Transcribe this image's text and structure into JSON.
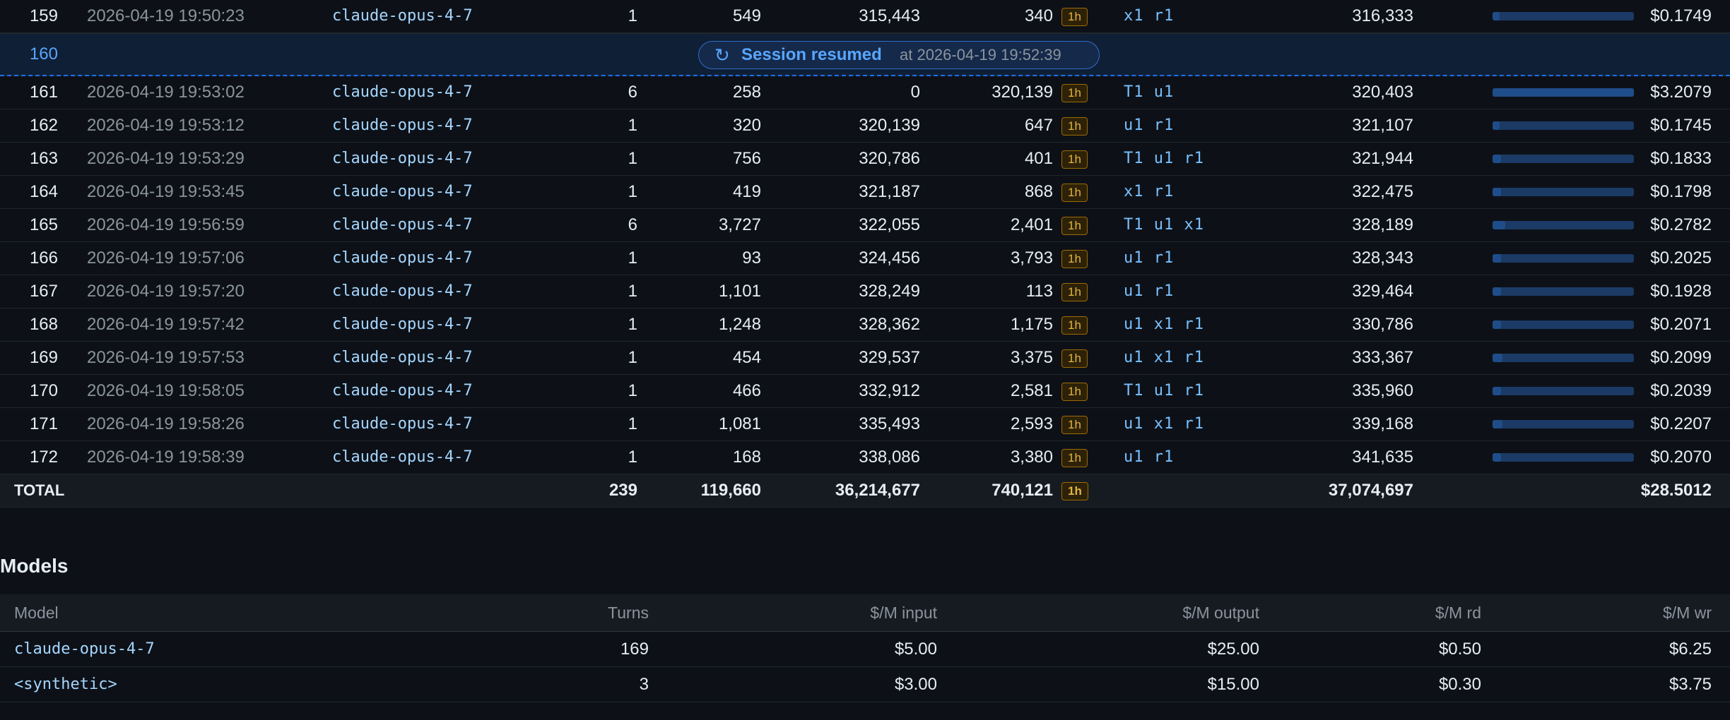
{
  "turns": {
    "rows_before": [
      {
        "idx": "159",
        "ts": "2026-04-19 19:50:23",
        "model": "claude-opus-4-7",
        "req": "1",
        "out": "549",
        "cache_read": "315,443",
        "cache_write": "340",
        "ttl": "1h",
        "tools": "x1 r1",
        "total": "316,333",
        "cost": "$0.1749",
        "bar_fraction": 0.05
      }
    ],
    "resume": {
      "idx": "160",
      "label": "Session resumed",
      "at": "at 2026-04-19 19:52:39",
      "icon": "restart-icon"
    },
    "rows": [
      {
        "idx": "161",
        "ts": "2026-04-19 19:53:02",
        "model": "claude-opus-4-7",
        "req": "6",
        "out": "258",
        "cache_read": "0",
        "cache_write": "320,139",
        "ttl": "1h",
        "tools": "T1 u1",
        "total": "320,403",
        "cost": "$3.2079",
        "bar_fraction": 1.0
      },
      {
        "idx": "162",
        "ts": "2026-04-19 19:53:12",
        "model": "claude-opus-4-7",
        "req": "1",
        "out": "320",
        "cache_read": "320,139",
        "cache_write": "647",
        "ttl": "1h",
        "tools": "u1 r1",
        "total": "321,107",
        "cost": "$0.1745",
        "bar_fraction": 0.05
      },
      {
        "idx": "163",
        "ts": "2026-04-19 19:53:29",
        "model": "claude-opus-4-7",
        "req": "1",
        "out": "756",
        "cache_read": "320,786",
        "cache_write": "401",
        "ttl": "1h",
        "tools": "T1 u1 r1",
        "total": "321,944",
        "cost": "$0.1833",
        "bar_fraction": 0.06
      },
      {
        "idx": "164",
        "ts": "2026-04-19 19:53:45",
        "model": "claude-opus-4-7",
        "req": "1",
        "out": "419",
        "cache_read": "321,187",
        "cache_write": "868",
        "ttl": "1h",
        "tools": "x1 r1",
        "total": "322,475",
        "cost": "$0.1798",
        "bar_fraction": 0.06
      },
      {
        "idx": "165",
        "ts": "2026-04-19 19:56:59",
        "model": "claude-opus-4-7",
        "req": "6",
        "out": "3,727",
        "cache_read": "322,055",
        "cache_write": "2,401",
        "ttl": "1h",
        "tools": "T1 u1 x1",
        "total": "328,189",
        "cost": "$0.2782",
        "bar_fraction": 0.09
      },
      {
        "idx": "166",
        "ts": "2026-04-19 19:57:06",
        "model": "claude-opus-4-7",
        "req": "1",
        "out": "93",
        "cache_read": "324,456",
        "cache_write": "3,793",
        "ttl": "1h",
        "tools": "u1 r1",
        "total": "328,343",
        "cost": "$0.2025",
        "bar_fraction": 0.06
      },
      {
        "idx": "167",
        "ts": "2026-04-19 19:57:20",
        "model": "claude-opus-4-7",
        "req": "1",
        "out": "1,101",
        "cache_read": "328,249",
        "cache_write": "113",
        "ttl": "1h",
        "tools": "u1 r1",
        "total": "329,464",
        "cost": "$0.1928",
        "bar_fraction": 0.06
      },
      {
        "idx": "168",
        "ts": "2026-04-19 19:57:42",
        "model": "claude-opus-4-7",
        "req": "1",
        "out": "1,248",
        "cache_read": "328,362",
        "cache_write": "1,175",
        "ttl": "1h",
        "tools": "u1 x1 r1",
        "total": "330,786",
        "cost": "$0.2071",
        "bar_fraction": 0.06
      },
      {
        "idx": "169",
        "ts": "2026-04-19 19:57:53",
        "model": "claude-opus-4-7",
        "req": "1",
        "out": "454",
        "cache_read": "329,537",
        "cache_write": "3,375",
        "ttl": "1h",
        "tools": "u1 x1 r1",
        "total": "333,367",
        "cost": "$0.2099",
        "bar_fraction": 0.07
      },
      {
        "idx": "170",
        "ts": "2026-04-19 19:58:05",
        "model": "claude-opus-4-7",
        "req": "1",
        "out": "466",
        "cache_read": "332,912",
        "cache_write": "2,581",
        "ttl": "1h",
        "tools": "T1 u1 r1",
        "total": "335,960",
        "cost": "$0.2039",
        "bar_fraction": 0.06
      },
      {
        "idx": "171",
        "ts": "2026-04-19 19:58:26",
        "model": "claude-opus-4-7",
        "req": "1",
        "out": "1,081",
        "cache_read": "335,493",
        "cache_write": "2,593",
        "ttl": "1h",
        "tools": "u1 x1 r1",
        "total": "339,168",
        "cost": "$0.2207",
        "bar_fraction": 0.07
      },
      {
        "idx": "172",
        "ts": "2026-04-19 19:58:39",
        "model": "claude-opus-4-7",
        "req": "1",
        "out": "168",
        "cache_read": "338,086",
        "cache_write": "3,380",
        "ttl": "1h",
        "tools": "u1 r1",
        "total": "341,635",
        "cost": "$0.2070",
        "bar_fraction": 0.06
      }
    ],
    "total": {
      "label": "TOTAL",
      "req": "239",
      "out": "119,660",
      "cache_read": "36,214,677",
      "cache_write": "740,121",
      "ttl": "1h",
      "total": "37,074,697",
      "cost": "$28.5012"
    }
  },
  "models": {
    "heading": "Models",
    "headers": {
      "model": "Model",
      "turns": "Turns",
      "input": "$/M input",
      "output": "$/M output",
      "rd": "$/M rd",
      "wr": "$/M wr"
    },
    "rows": [
      {
        "model": "claude-opus-4-7",
        "turns": "169",
        "input": "$5.00",
        "output": "$25.00",
        "rd": "$0.50",
        "wr": "$6.25"
      },
      {
        "model": "<synthetic>",
        "turns": "3",
        "input": "$3.00",
        "output": "$15.00",
        "rd": "$0.30",
        "wr": "$3.75"
      }
    ]
  },
  "colors": {
    "accent": "#58a6ff",
    "badge": "#e3b341",
    "bar": "#1f4d8a",
    "background": "#0d1117"
  }
}
